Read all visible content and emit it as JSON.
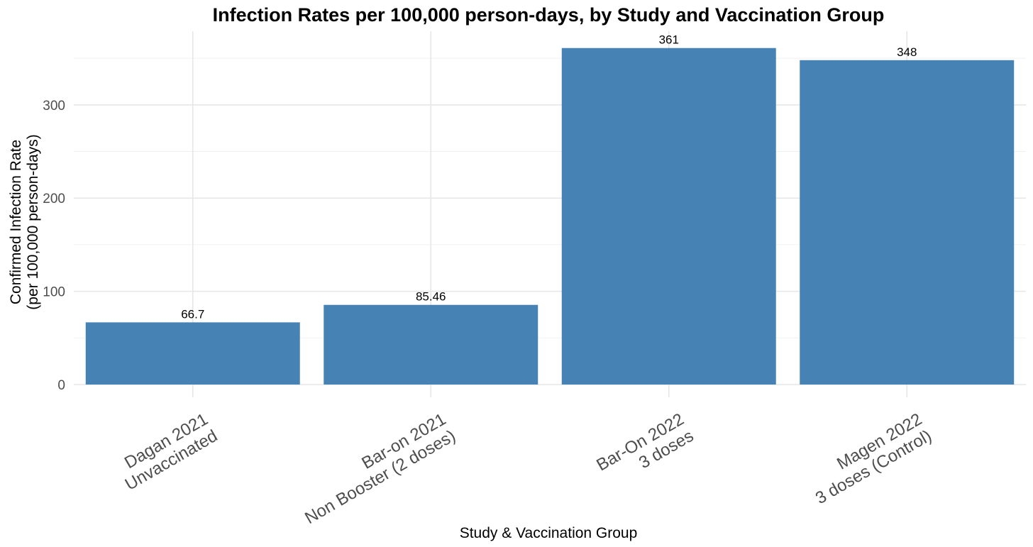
{
  "chart_data": {
    "type": "bar",
    "title": "Infection Rates per 100,000 person-days, by Study and Vaccination Group",
    "xlabel": "Study & Vaccination Group",
    "ylabel": [
      "Confirmed Infection Rate",
      "(per 100,000 person-days)"
    ],
    "categories": [
      [
        "Dagan 2021",
        "Unvaccinated"
      ],
      [
        "Bar-on 2021",
        "Non Booster (2 doses)"
      ],
      [
        "Bar-On 2022",
        "3 doses"
      ],
      [
        "Magen 2022",
        "3 doses (Control)"
      ]
    ],
    "values": [
      66.7,
      85.46,
      361,
      348
    ],
    "value_labels": [
      "66.7",
      "85.46",
      "361",
      "348"
    ],
    "yticks": [
      0,
      100,
      200,
      300
    ],
    "ytick_labels": [
      "0",
      "100",
      "200",
      "300"
    ],
    "ylim": [
      0,
      380
    ],
    "grid": true,
    "bar_color": "#4682b4",
    "legend": "none"
  }
}
